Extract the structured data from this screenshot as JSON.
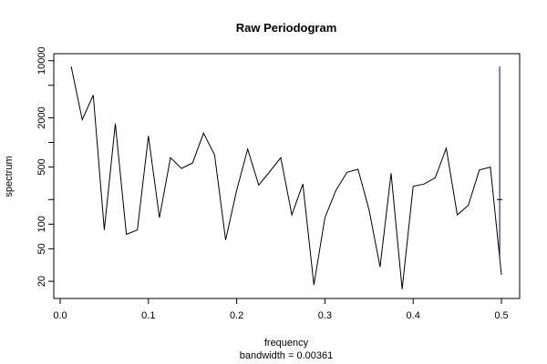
{
  "chart_data": {
    "type": "line",
    "title": "Raw Periodogram",
    "xlabel": "frequency",
    "xlabel_sub": "bandwidth = 0.00361",
    "ylabel": "spectrum",
    "y_scale": "log",
    "xlim": [
      0.0,
      0.5
    ],
    "ylim": [
      14,
      11000
    ],
    "x_ticks": [
      "0.0",
      "0.1",
      "0.2",
      "0.3",
      "0.4",
      "0.5"
    ],
    "x_tick_values": [
      0.0,
      0.1,
      0.2,
      0.3,
      0.4,
      0.5
    ],
    "y_ticks": [
      "10000",
      "2000",
      "500",
      "100",
      "50",
      "20"
    ],
    "y_tick_values": [
      10000,
      2000,
      500,
      100,
      50,
      20
    ],
    "y_minor_tick_values": [
      5000,
      1000,
      200
    ],
    "grid": false,
    "series": [
      {
        "color": "#000000",
        "x": [
          0.0125,
          0.025,
          0.0375,
          0.05,
          0.0625,
          0.075,
          0.0875,
          0.1,
          0.1125,
          0.125,
          0.1375,
          0.15,
          0.1625,
          0.175,
          0.1875,
          0.2,
          0.2125,
          0.225,
          0.2375,
          0.25,
          0.2625,
          0.275,
          0.2875,
          0.3,
          0.3125,
          0.325,
          0.3375,
          0.35,
          0.3625,
          0.375,
          0.3875,
          0.4,
          0.4125,
          0.425,
          0.4375,
          0.45,
          0.4625,
          0.475,
          0.4875,
          0.5
        ],
        "y": [
          8500,
          1900,
          3800,
          85,
          1700,
          75,
          85,
          1200,
          120,
          650,
          480,
          560,
          1300,
          700,
          64,
          260,
          830,
          300,
          440,
          650,
          130,
          310,
          18,
          120,
          260,
          430,
          470,
          150,
          30,
          420,
          16,
          290,
          310,
          370,
          850,
          130,
          170,
          460,
          500,
          24
        ]
      }
    ],
    "error_bar": {
      "color": "#00008b",
      "x": 0.498,
      "center": 200,
      "lower": 38,
      "upper": 8500
    }
  }
}
